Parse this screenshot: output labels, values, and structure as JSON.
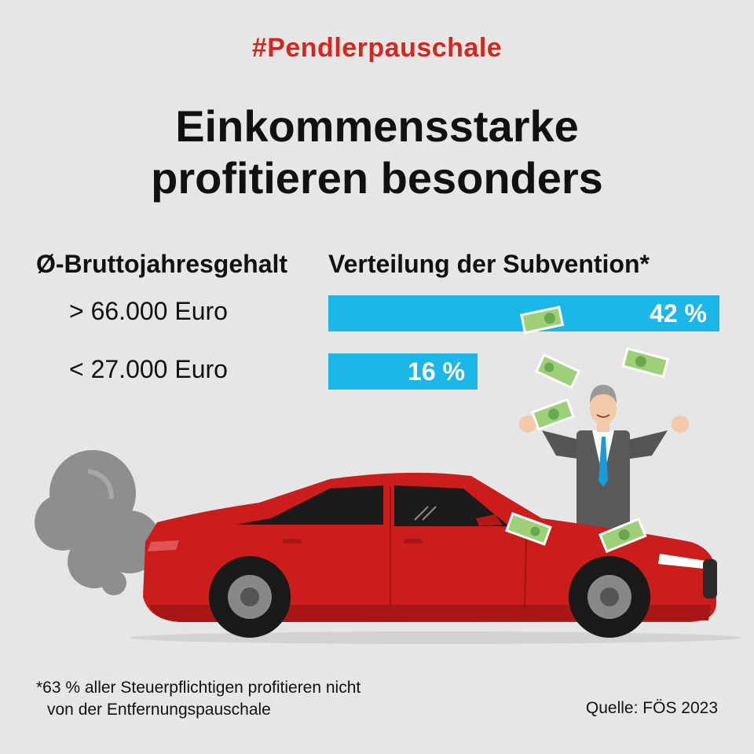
{
  "hashtag": "#Pendlerpauschale",
  "title_line1": "Einkommensstarke",
  "title_line2": "profitieren besonders",
  "colors": {
    "accent_red": "#d7261e",
    "bar_blue": "#1ab7e8",
    "background": "#e6e6e6",
    "car_red": "#cc1d1d"
  },
  "icons": [
    "car",
    "exhaust-smoke",
    "businessman",
    "euro-banknote"
  ],
  "chart_data": {
    "type": "bar",
    "orientation": "horizontal",
    "category_header": "Ø-Bruttojahresgehalt",
    "value_header": "Verteilung der Subvention*",
    "categories": [
      "> 66.000 Euro",
      "< 27.000 Euro"
    ],
    "values": [
      42,
      16
    ],
    "value_labels": [
      "42 %",
      "16 %"
    ],
    "unit": "%",
    "xlim": [
      0,
      42
    ],
    "grid": false
  },
  "footnote_line1": "*63 % aller Steuerpflichtigen profitieren nicht",
  "footnote_line2": "von der Entfernungspauschale",
  "source": "Quelle: FÖS 2023"
}
